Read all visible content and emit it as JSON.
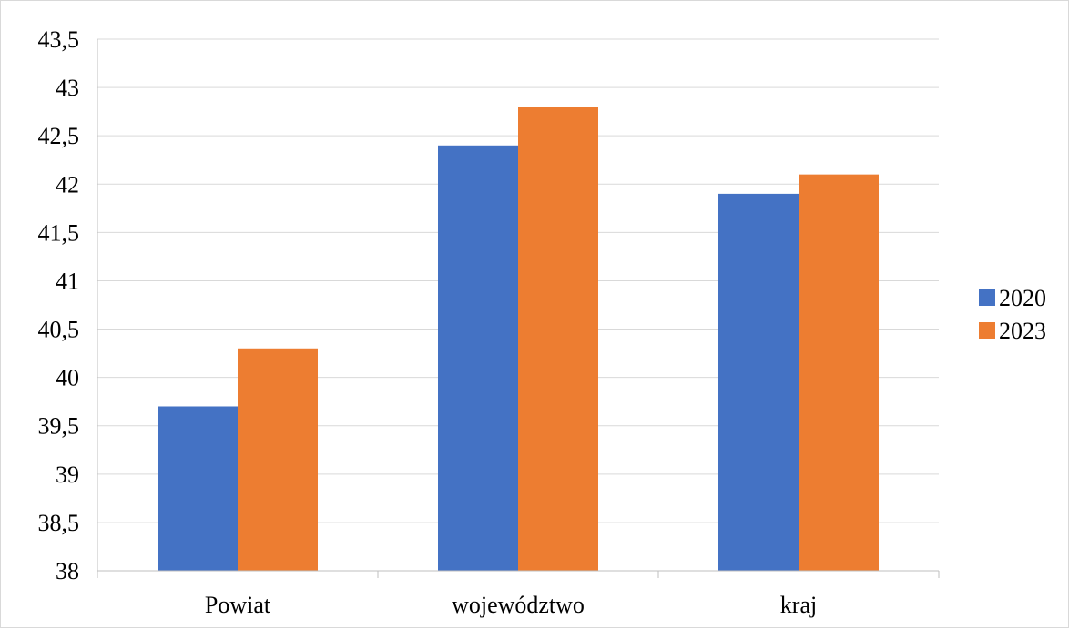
{
  "chart_data": {
    "type": "bar",
    "categories": [
      "Powiat",
      "województwo",
      "kraj"
    ],
    "series": [
      {
        "name": "2020",
        "values": [
          39.7,
          42.4,
          41.9
        ],
        "color": "#4472C4"
      },
      {
        "name": "2023",
        "values": [
          40.3,
          42.8,
          42.1
        ],
        "color": "#ED7D31"
      }
    ],
    "ylim": [
      38,
      43.5
    ],
    "yticks": [
      "38",
      "38,5",
      "39",
      "39,5",
      "40",
      "40,5",
      "41",
      "41,5",
      "42",
      "42,5",
      "43",
      "43,5"
    ],
    "grid": true,
    "legend": "right",
    "colors": {
      "grid": "#d9d9d9",
      "axis": "#bfbfbf"
    }
  }
}
